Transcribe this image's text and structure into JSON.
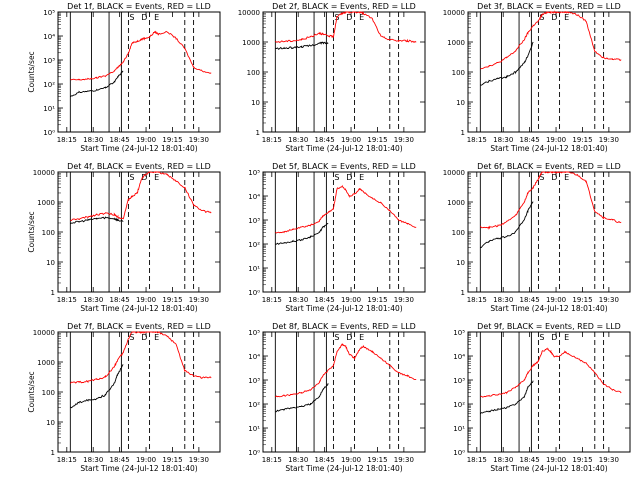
{
  "figure": {
    "background": "#ffffff",
    "axis_color": "#000000",
    "events_color": "#000000",
    "lld_color": "#ff0000"
  },
  "chart_data": [
    {
      "type": "line",
      "title": "Det  1f, BLACK = Events, RED = LLD",
      "xlabel": "Start Time (24-Jul-12 18:01:40)",
      "ylabel": "Counts/sec",
      "yscale": "log",
      "ylim": [
        1,
        100000
      ],
      "yticks": [
        "10⁰",
        "10¹",
        "10²",
        "10³",
        "10⁴",
        "10⁵"
      ],
      "xticks": [
        "18:15",
        "18:30",
        "18:45",
        "19:00",
        "19:15",
        "19:30"
      ],
      "x_minutes": [
        13,
        15,
        20,
        25,
        30,
        35,
        40,
        42,
        45,
        48,
        50,
        53,
        55,
        57,
        60,
        63,
        65,
        70,
        75,
        80,
        85,
        90,
        95
      ],
      "series": [
        {
          "name": "Events",
          "values": [
            null,
            30,
            45,
            50,
            55,
            70,
            120,
            200,
            350,
            null,
            null,
            null,
            null,
            null,
            null,
            null,
            null,
            null,
            null,
            null,
            null,
            null,
            null
          ]
        },
        {
          "name": "LLD",
          "values": [
            null,
            150,
            150,
            160,
            180,
            220,
            350,
            500,
            800,
            2000,
            5000,
            6000,
            7000,
            8000,
            9000,
            15000,
            12000,
            15000,
            8000,
            3000,
            500,
            350,
            280
          ]
        }
      ],
      "solid_lines_min": [
        15,
        27,
        37,
        44
      ],
      "dashed_lines_min": [
        48,
        60,
        80,
        85
      ],
      "markers": [
        "S",
        "D",
        "E"
      ]
    },
    {
      "type": "line",
      "title": "Det  2f, BLACK = Events, RED = LLD",
      "xlabel": "Start Time (24-Jul-12 18:01:40)",
      "ylabel": "",
      "yscale": "log",
      "ylim": [
        1,
        10000
      ],
      "yticks": [
        "1",
        "10",
        "100",
        "1000",
        "10000"
      ],
      "xticks": [
        "18:15",
        "18:30",
        "18:45",
        "19:00",
        "19:15",
        "19:30"
      ],
      "x_minutes": [
        13,
        15,
        20,
        25,
        30,
        35,
        40,
        42,
        45,
        48,
        50,
        53,
        55,
        57,
        60,
        63,
        65,
        70,
        75,
        80,
        85,
        90,
        95
      ],
      "series": [
        {
          "name": "Events",
          "values": [
            null,
            600,
            620,
            650,
            700,
            750,
            900,
            950,
            900,
            null,
            null,
            null,
            null,
            null,
            null,
            null,
            null,
            null,
            null,
            null,
            null,
            null,
            null
          ]
        },
        {
          "name": "LLD",
          "values": [
            null,
            1000,
            1050,
            1100,
            1200,
            1500,
            2000,
            1800,
            1600,
            1500,
            7000,
            9000,
            10000,
            10000,
            10000,
            10000,
            9000,
            6000,
            1500,
            1200,
            1100,
            1100,
            1000
          ]
        }
      ],
      "solid_lines_min": [
        15,
        27,
        37,
        44
      ],
      "dashed_lines_min": [
        48,
        60,
        80,
        85
      ],
      "markers": [
        "S",
        "D",
        "E"
      ]
    },
    {
      "type": "line",
      "title": "Det  3f, BLACK = Events, RED = LLD",
      "xlabel": "Start Time (24-Jul-12 18:01:40)",
      "ylabel": "",
      "yscale": "log",
      "ylim": [
        1,
        10000
      ],
      "yticks": [
        "1",
        "10",
        "100",
        "1000",
        "10000"
      ],
      "xticks": [
        "18:15",
        "18:30",
        "18:45",
        "19:00",
        "19:15",
        "19:30"
      ],
      "x_minutes": [
        13,
        15,
        20,
        25,
        30,
        35,
        40,
        42,
        45,
        48,
        50,
        53,
        55,
        57,
        60,
        63,
        65,
        70,
        75,
        80,
        85,
        90,
        95
      ],
      "series": [
        {
          "name": "Events",
          "values": [
            null,
            35,
            50,
            60,
            70,
            100,
            200,
            350,
            1000,
            null,
            null,
            null,
            null,
            null,
            null,
            null,
            null,
            null,
            null,
            null,
            null,
            null,
            null
          ]
        },
        {
          "name": "LLD",
          "values": [
            null,
            130,
            160,
            200,
            300,
            500,
            1200,
            2000,
            3500,
            5000,
            8000,
            10000,
            10000,
            10000,
            10000,
            10000,
            10000,
            8000,
            5000,
            500,
            300,
            280,
            250
          ]
        }
      ],
      "solid_lines_min": [
        15,
        27,
        37,
        44
      ],
      "dashed_lines_min": [
        48,
        60,
        80,
        85
      ],
      "markers": [
        "S",
        "D",
        "E"
      ]
    },
    {
      "type": "line",
      "title": "Det  4f, BLACK = Events, RED = LLD",
      "xlabel": "Start Time (24-Jul-12 18:01:40)",
      "ylabel": "Counts/sec",
      "yscale": "log",
      "ylim": [
        1,
        10000
      ],
      "yticks": [
        "1",
        "10",
        "100",
        "1000",
        "10000"
      ],
      "xticks": [
        "18:15",
        "18:30",
        "18:45",
        "19:00",
        "19:15",
        "19:30"
      ],
      "x_minutes": [
        13,
        15,
        20,
        25,
        30,
        35,
        40,
        42,
        45,
        48,
        50,
        53,
        55,
        57,
        60,
        63,
        65,
        70,
        75,
        80,
        85,
        90,
        95
      ],
      "series": [
        {
          "name": "Events",
          "values": [
            null,
            200,
            220,
            250,
            280,
            300,
            280,
            250,
            220,
            null,
            null,
            null,
            null,
            null,
            null,
            null,
            null,
            null,
            null,
            null,
            null,
            null,
            null
          ]
        },
        {
          "name": "LLD",
          "values": [
            null,
            250,
            270,
            320,
            380,
            420,
            380,
            320,
            280,
            1200,
            1500,
            2000,
            5000,
            8000,
            10000,
            10000,
            10000,
            8000,
            5000,
            3000,
            800,
            500,
            450
          ]
        }
      ],
      "solid_lines_min": [
        15,
        27,
        37,
        44
      ],
      "dashed_lines_min": [
        48,
        60,
        80,
        85
      ],
      "markers": [
        "S",
        "D",
        "E"
      ]
    },
    {
      "type": "line",
      "title": "Det  5f, BLACK = Events, RED = LLD",
      "xlabel": "Start Time (24-Jul-12 18:01:40)",
      "ylabel": "",
      "yscale": "log",
      "ylim": [
        1,
        100000
      ],
      "yticks": [
        "10⁰",
        "10¹",
        "10²",
        "10³",
        "10⁴",
        "10⁵"
      ],
      "xticks": [
        "18:15",
        "18:30",
        "18:45",
        "19:00",
        "19:15",
        "19:30"
      ],
      "x_minutes": [
        13,
        15,
        20,
        25,
        30,
        35,
        40,
        42,
        45,
        48,
        50,
        53,
        55,
        57,
        60,
        63,
        65,
        70,
        75,
        80,
        85,
        90,
        95
      ],
      "series": [
        {
          "name": "Events",
          "values": [
            null,
            100,
            110,
            130,
            150,
            200,
            300,
            500,
            700,
            null,
            null,
            null,
            null,
            null,
            null,
            null,
            null,
            null,
            null,
            null,
            null,
            null,
            null
          ]
        },
        {
          "name": "LLD",
          "values": [
            null,
            300,
            320,
            400,
            500,
            600,
            900,
            1500,
            2000,
            3000,
            20000,
            25000,
            18000,
            10000,
            12000,
            20000,
            15000,
            8000,
            5000,
            2500,
            1000,
            700,
            500
          ]
        }
      ],
      "solid_lines_min": [
        15,
        27,
        37,
        44
      ],
      "dashed_lines_min": [
        48,
        60,
        80,
        85
      ],
      "markers": [
        "S",
        "D",
        "E"
      ]
    },
    {
      "type": "line",
      "title": "Det  6f, BLACK = Events, RED = LLD",
      "xlabel": "Start Time (24-Jul-12 18:01:40)",
      "ylabel": "",
      "yscale": "log",
      "ylim": [
        1,
        10000
      ],
      "yticks": [
        "1",
        "10",
        "100",
        "1000",
        "10000"
      ],
      "xticks": [
        "18:15",
        "18:30",
        "18:45",
        "19:00",
        "19:15",
        "19:30"
      ],
      "x_minutes": [
        13,
        15,
        20,
        25,
        30,
        35,
        40,
        42,
        45,
        48,
        50,
        53,
        55,
        57,
        60,
        63,
        65,
        70,
        75,
        80,
        85,
        90,
        95
      ],
      "series": [
        {
          "name": "Events",
          "values": [
            null,
            30,
            50,
            60,
            70,
            100,
            250,
            500,
            1000,
            null,
            null,
            null,
            null,
            null,
            null,
            null,
            null,
            null,
            null,
            null,
            null,
            null,
            null
          ]
        },
        {
          "name": "LLD",
          "values": [
            null,
            150,
            140,
            160,
            220,
            350,
            1000,
            2000,
            3000,
            6000,
            10000,
            10000,
            10000,
            10000,
            10000,
            10000,
            10000,
            8000,
            5000,
            500,
            300,
            250,
            200
          ]
        }
      ],
      "solid_lines_min": [
        15,
        27,
        37,
        44
      ],
      "dashed_lines_min": [
        48,
        60,
        80,
        85
      ],
      "markers": [
        "S",
        "D",
        "E"
      ]
    },
    {
      "type": "line",
      "title": "Det  7f, BLACK = Events, RED = LLD",
      "xlabel": "Start Time (24-Jul-12 18:01:40)",
      "ylabel": "Counts/sec",
      "yscale": "log",
      "ylim": [
        1,
        10000
      ],
      "yticks": [
        "1",
        "10",
        "100",
        "1000",
        "10000"
      ],
      "xticks": [
        "18:15",
        "18:30",
        "18:45",
        "19:00",
        "19:15",
        "19:30"
      ],
      "x_minutes": [
        13,
        15,
        20,
        25,
        30,
        35,
        40,
        42,
        45,
        48,
        50,
        53,
        55,
        57,
        60,
        63,
        65,
        70,
        75,
        80,
        85,
        90,
        95
      ],
      "series": [
        {
          "name": "Events",
          "values": [
            null,
            30,
            45,
            55,
            60,
            80,
            200,
            400,
            800,
            null,
            null,
            null,
            null,
            null,
            null,
            null,
            null,
            null,
            null,
            null,
            null,
            null,
            null
          ]
        },
        {
          "name": "LLD",
          "values": [
            null,
            200,
            210,
            230,
            260,
            320,
            700,
            1200,
            2000,
            6000,
            10000,
            10000,
            10000,
            10000,
            10000,
            10000,
            10000,
            7000,
            4000,
            500,
            350,
            300,
            300
          ]
        }
      ],
      "solid_lines_min": [
        15,
        27,
        37,
        44
      ],
      "dashed_lines_min": [
        48,
        60,
        80,
        85
      ],
      "markers": [
        "S",
        "D",
        "E"
      ]
    },
    {
      "type": "line",
      "title": "Det  8f, BLACK = Events, RED = LLD",
      "xlabel": "Start Time (24-Jul-12 18:01:40)",
      "ylabel": "",
      "yscale": "log",
      "ylim": [
        1,
        100000
      ],
      "yticks": [
        "10⁰",
        "10¹",
        "10²",
        "10³",
        "10⁴",
        "10⁵"
      ],
      "xticks": [
        "18:15",
        "18:30",
        "18:45",
        "19:00",
        "19:15",
        "19:30"
      ],
      "x_minutes": [
        13,
        15,
        20,
        25,
        30,
        35,
        40,
        42,
        45,
        48,
        50,
        53,
        55,
        57,
        60,
        63,
        65,
        70,
        75,
        80,
        85,
        90,
        95
      ],
      "series": [
        {
          "name": "Events",
          "values": [
            null,
            50,
            60,
            70,
            80,
            100,
            200,
            400,
            700,
            null,
            null,
            null,
            null,
            null,
            null,
            null,
            null,
            null,
            null,
            null,
            null,
            null,
            null
          ]
        },
        {
          "name": "LLD",
          "values": [
            null,
            200,
            220,
            250,
            300,
            400,
            800,
            1500,
            2500,
            4000,
            15000,
            30000,
            25000,
            12000,
            8000,
            20000,
            25000,
            15000,
            8000,
            4000,
            2000,
            1500,
            1000
          ]
        }
      ],
      "solid_lines_min": [
        15,
        27,
        37,
        44
      ],
      "dashed_lines_min": [
        48,
        60,
        80,
        85
      ],
      "markers": [
        "S",
        "D",
        "E"
      ]
    },
    {
      "type": "line",
      "title": "Det  9f, BLACK = Events, RED = LLD",
      "xlabel": "Start Time (24-Jul-12 18:01:40)",
      "ylabel": "",
      "yscale": "log",
      "ylim": [
        1,
        100000
      ],
      "yticks": [
        "10⁰",
        "10¹",
        "10²",
        "10³",
        "10⁴",
        "10⁵"
      ],
      "xticks": [
        "18:15",
        "18:30",
        "18:45",
        "19:00",
        "19:15",
        "19:30"
      ],
      "x_minutes": [
        13,
        15,
        20,
        25,
        30,
        35,
        40,
        42,
        45,
        48,
        50,
        53,
        55,
        57,
        60,
        63,
        65,
        70,
        75,
        80,
        85,
        90,
        95
      ],
      "series": [
        {
          "name": "Events",
          "values": [
            null,
            40,
            50,
            60,
            70,
            100,
            200,
            500,
            900,
            null,
            null,
            null,
            null,
            null,
            null,
            null,
            null,
            null,
            null,
            null,
            null,
            null,
            null
          ]
        },
        {
          "name": "LLD",
          "values": [
            null,
            200,
            220,
            250,
            300,
            500,
            1000,
            2000,
            4000,
            6000,
            15000,
            20000,
            15000,
            9000,
            10000,
            15000,
            12000,
            8000,
            5000,
            2000,
            700,
            400,
            300
          ]
        }
      ],
      "solid_lines_min": [
        15,
        27,
        37,
        44
      ],
      "dashed_lines_min": [
        48,
        60,
        80,
        85
      ],
      "markers": [
        "S",
        "D",
        "E"
      ]
    }
  ]
}
